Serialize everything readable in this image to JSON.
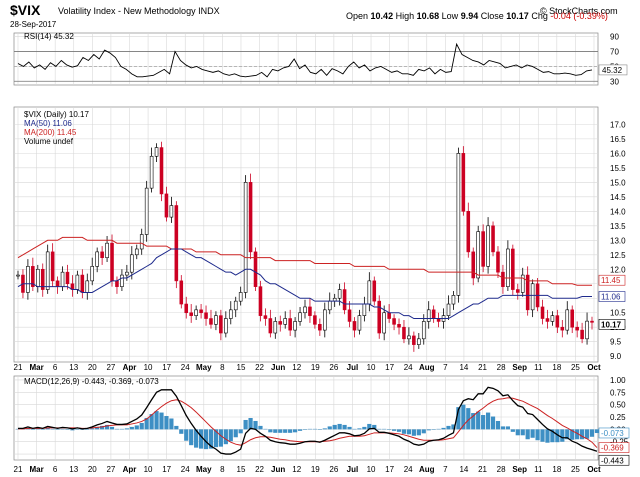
{
  "header": {
    "symbol": "$VIX",
    "name": "Volatility Index - New Methodology  INDX",
    "date": "28-Sep-2017",
    "brand": "© StockCharts.com",
    "open_label": "Open",
    "open": "10.42",
    "high_label": "High",
    "high": "10.68",
    "low_label": "Low",
    "low": "9.94",
    "close_label": "Close",
    "close": "10.17",
    "chg_label": "Chg",
    "chg": "-0.04 (-0.39%)"
  },
  "colors": {
    "up": "#000000",
    "down": "#cc0022",
    "ma50": "#1e2a8c",
    "ma200": "#cc2222",
    "hist": "#3d8fc4",
    "macd": "#000000",
    "signal": "#cc2222",
    "grid": "#d8d8d8"
  },
  "x_labels": [
    "21",
    "Mar",
    "6",
    "13",
    "20",
    "27",
    "Apr",
    "10",
    "17",
    "24",
    "May",
    "8",
    "15",
    "22",
    "Jun",
    "12",
    "19",
    "26",
    "Jul",
    "10",
    "17",
    "24",
    "Aug",
    "7",
    "14",
    "21",
    "28",
    "Sep",
    "11",
    "18",
    "25",
    "Oct"
  ],
  "chart_data": [
    {
      "type": "line",
      "panel": "rsi",
      "legend": "RSI(14) 45.32",
      "y_ticks": [
        30,
        50,
        70,
        90
      ],
      "ylim": [
        25,
        95
      ],
      "reference_lines": [
        30,
        70
      ],
      "last_value_label": "45.32",
      "values": [
        54,
        50,
        56,
        48,
        52,
        46,
        55,
        50,
        58,
        52,
        49,
        51,
        62,
        58,
        66,
        60,
        72,
        68,
        62,
        50,
        46,
        40,
        36,
        36,
        37,
        38,
        42,
        46,
        40,
        70,
        58,
        52,
        48,
        50,
        46,
        44,
        42,
        44,
        40,
        38,
        40,
        37,
        36,
        37,
        38,
        42,
        36,
        46,
        44,
        48,
        50,
        60,
        47,
        52,
        42,
        40,
        46,
        38,
        47,
        44,
        40,
        50,
        56,
        48,
        52,
        44,
        48,
        50,
        46,
        42,
        44,
        40,
        40,
        38,
        46,
        44,
        48,
        40,
        46,
        42,
        43,
        80,
        66,
        62,
        58,
        56,
        52,
        58,
        56,
        54,
        48,
        50,
        52,
        48,
        52,
        50,
        46,
        42,
        43,
        40,
        40,
        41,
        40,
        38,
        39,
        44,
        45.32
      ]
    },
    {
      "type": "candlestick",
      "panel": "price",
      "legend": [
        "$VIX (Daily) 10.17",
        "MA(50) 11.06",
        "MA(200) 11.45",
        "Volume undef"
      ],
      "y_ticks": [
        9.0,
        9.5,
        10.0,
        10.5,
        11.0,
        11.5,
        12.0,
        12.5,
        13.0,
        13.5,
        14.0,
        14.5,
        15.0,
        15.5,
        16.0,
        16.5,
        17.0
      ],
      "ylim": [
        8.8,
        17.6
      ],
      "last_labels": {
        "ma200": "11.45",
        "ma50": "11.06",
        "close": "10.17"
      },
      "closes": [
        11.8,
        11.2,
        12.1,
        11.4,
        12.0,
        11.3,
        12.6,
        11.6,
        11.4,
        11.9,
        11.5,
        11.3,
        11.8,
        11.2,
        11.6,
        12.1,
        12.6,
        12.4,
        12.9,
        11.6,
        11.4,
        11.8,
        11.9,
        12.5,
        12.7,
        13.2,
        14.8,
        15.9,
        16.2,
        14.6,
        13.8,
        14.2,
        11.6,
        10.8,
        10.5,
        10.4,
        10.6,
        10.5,
        10.3,
        10.1,
        10.4,
        9.8,
        10.3,
        10.6,
        10.9,
        11.2,
        15.0,
        12.6,
        11.4,
        10.4,
        10.3,
        9.8,
        10.2,
        10.1,
        10.3,
        9.9,
        10.2,
        10.5,
        10.7,
        10.4,
        10.1,
        9.9,
        10.6,
        10.9,
        11.0,
        11.3,
        10.6,
        10.2,
        9.9,
        10.4,
        10.8,
        11.6,
        10.9,
        9.8,
        10.5,
        10.3,
        10.1,
        10.0,
        9.6,
        9.7,
        9.4,
        9.6,
        10.2,
        10.6,
        10.3,
        10.2,
        10.4,
        10.8,
        11.1,
        16.0,
        14.0,
        12.6,
        11.7,
        13.3,
        12.1,
        13.5,
        12.6,
        11.9,
        11.4,
        12.7,
        11.3,
        11.2,
        11.8,
        10.6,
        11.5,
        10.7,
        10.3,
        10.2,
        10.4,
        10.0,
        9.9,
        10.6,
        10.0,
        9.9,
        9.6,
        10.21,
        10.17
      ],
      "ma50": [
        11.4,
        11.5,
        11.5,
        11.5,
        11.4,
        11.4,
        11.4,
        11.4,
        11.4,
        11.4,
        11.4,
        11.3,
        11.3,
        11.2,
        11.2,
        11.2,
        11.3,
        11.4,
        11.5,
        11.6,
        11.6,
        11.7,
        11.7,
        11.8,
        11.9,
        12.0,
        12.1,
        12.2,
        12.4,
        12.5,
        12.6,
        12.7,
        12.7,
        12.7,
        12.6,
        12.5,
        12.4,
        12.4,
        12.3,
        12.2,
        12.1,
        12.0,
        11.9,
        11.9,
        11.8,
        11.9,
        12.0,
        12.0,
        11.9,
        11.8,
        11.6,
        11.5,
        11.5,
        11.4,
        11.3,
        11.2,
        11.1,
        11.0,
        11.0,
        11.0,
        10.9,
        10.9,
        10.9,
        10.9,
        10.9,
        10.9,
        10.8,
        10.8,
        10.8,
        10.8,
        10.8,
        10.8,
        10.7,
        10.7,
        10.6,
        10.5,
        10.5,
        10.5,
        10.4,
        10.4,
        10.3,
        10.3,
        10.3,
        10.3,
        10.3,
        10.3,
        10.3,
        10.3,
        10.4,
        10.5,
        10.6,
        10.7,
        10.8,
        10.8,
        10.9,
        11.0,
        11.0,
        11.0,
        11.1,
        11.1,
        11.1,
        11.1,
        11.1,
        11.1,
        11.1,
        11.1,
        11.1,
        11.1,
        11.0,
        11.0,
        11.0,
        11.0,
        11.0,
        11.0,
        11.06,
        11.06,
        11.06
      ],
      "ma200": [
        12.4,
        12.5,
        12.6,
        12.7,
        12.8,
        12.9,
        13.0,
        13.0,
        13.0,
        13.1,
        13.1,
        13.1,
        13.1,
        13.1,
        13.0,
        13.0,
        13.0,
        13.0,
        13.0,
        13.0,
        12.9,
        12.9,
        12.9,
        12.9,
        12.9,
        12.9,
        12.8,
        12.8,
        12.8,
        12.8,
        12.8,
        12.7,
        12.7,
        12.7,
        12.7,
        12.7,
        12.6,
        12.6,
        12.6,
        12.6,
        12.6,
        12.5,
        12.5,
        12.5,
        12.5,
        12.5,
        12.4,
        12.4,
        12.4,
        12.4,
        12.4,
        12.4,
        12.3,
        12.3,
        12.3,
        12.3,
        12.3,
        12.3,
        12.3,
        12.3,
        12.2,
        12.2,
        12.2,
        12.2,
        12.2,
        12.2,
        12.2,
        12.2,
        12.1,
        12.1,
        12.1,
        12.1,
        12.1,
        12.1,
        12.1,
        12.0,
        12.0,
        12.0,
        12.0,
        12.0,
        12.0,
        12.0,
        12.0,
        11.9,
        11.9,
        11.9,
        11.9,
        11.9,
        11.9,
        11.9,
        11.9,
        11.9,
        11.9,
        11.8,
        11.8,
        11.8,
        11.8,
        11.8,
        11.7,
        11.7,
        11.7,
        11.7,
        11.7,
        11.6,
        11.6,
        11.6,
        11.6,
        11.6,
        11.5,
        11.5,
        11.5,
        11.5,
        11.5,
        11.45,
        11.45,
        11.45,
        11.45
      ]
    },
    {
      "type": "line",
      "panel": "macd",
      "legend": "MACD(12,26,9) -0.443, -0.369, -0.073",
      "y_ticks": [
        -0.5,
        -0.25,
        0.0,
        0.25,
        0.5,
        0.75,
        1.0
      ],
      "ylim": [
        -0.62,
        1.08
      ],
      "last_labels": {
        "hist": "-0.073",
        "signal": "-0.369",
        "macd": "-0.443"
      },
      "macd": [
        0.02,
        0.02,
        0.05,
        0.02,
        0.04,
        0.02,
        0.06,
        0.04,
        0.02,
        0.04,
        0.03,
        0.01,
        0.03,
        0.01,
        0.02,
        0.05,
        0.09,
        0.12,
        0.16,
        0.13,
        0.1,
        0.1,
        0.11,
        0.16,
        0.21,
        0.29,
        0.44,
        0.6,
        0.75,
        0.8,
        0.8,
        0.8,
        0.67,
        0.48,
        0.28,
        0.12,
        -0.02,
        -0.14,
        -0.25,
        -0.34,
        -0.4,
        -0.48,
        -0.5,
        -0.5,
        -0.46,
        -0.4,
        -0.08,
        0.02,
        0.0,
        -0.08,
        -0.14,
        -0.22,
        -0.25,
        -0.27,
        -0.28,
        -0.3,
        -0.3,
        -0.28,
        -0.25,
        -0.24,
        -0.24,
        -0.26,
        -0.22,
        -0.17,
        -0.12,
        -0.07,
        -0.07,
        -0.09,
        -0.13,
        -0.12,
        -0.08,
        0.01,
        0.02,
        -0.06,
        -0.06,
        -0.08,
        -0.11,
        -0.14,
        -0.2,
        -0.24,
        -0.3,
        -0.32,
        -0.3,
        -0.24,
        -0.22,
        -0.21,
        -0.18,
        -0.12,
        -0.07,
        0.4,
        0.58,
        0.62,
        0.6,
        0.72,
        0.72,
        0.85,
        0.83,
        0.78,
        0.68,
        0.7,
        0.58,
        0.48,
        0.45,
        0.32,
        0.3,
        0.2,
        0.1,
        0.01,
        -0.04,
        -0.11,
        -0.17,
        -0.17,
        -0.24,
        -0.28,
        -0.34,
        -0.38,
        -0.41,
        -0.443
      ],
      "signal": [
        0.01,
        0.01,
        0.02,
        0.02,
        0.02,
        0.02,
        0.03,
        0.03,
        0.03,
        0.03,
        0.03,
        0.03,
        0.03,
        0.02,
        0.02,
        0.03,
        0.04,
        0.05,
        0.07,
        0.08,
        0.09,
        0.09,
        0.09,
        0.11,
        0.13,
        0.16,
        0.21,
        0.29,
        0.38,
        0.46,
        0.53,
        0.58,
        0.6,
        0.57,
        0.51,
        0.44,
        0.35,
        0.25,
        0.15,
        0.05,
        -0.04,
        -0.13,
        -0.2,
        -0.26,
        -0.3,
        -0.32,
        -0.27,
        -0.21,
        -0.17,
        -0.15,
        -0.15,
        -0.16,
        -0.18,
        -0.2,
        -0.21,
        -0.23,
        -0.24,
        -0.25,
        -0.25,
        -0.25,
        -0.25,
        -0.25,
        -0.24,
        -0.23,
        -0.21,
        -0.18,
        -0.16,
        -0.14,
        -0.14,
        -0.14,
        -0.13,
        -0.1,
        -0.07,
        -0.07,
        -0.07,
        -0.07,
        -0.08,
        -0.09,
        -0.11,
        -0.14,
        -0.17,
        -0.2,
        -0.22,
        -0.22,
        -0.22,
        -0.22,
        -0.21,
        -0.19,
        -0.17,
        -0.05,
        0.08,
        0.19,
        0.27,
        0.36,
        0.43,
        0.51,
        0.57,
        0.61,
        0.62,
        0.64,
        0.63,
        0.6,
        0.57,
        0.52,
        0.47,
        0.42,
        0.35,
        0.28,
        0.22,
        0.15,
        0.08,
        0.03,
        -0.03,
        -0.08,
        -0.14,
        -0.19,
        -0.26,
        -0.369
      ]
    }
  ]
}
